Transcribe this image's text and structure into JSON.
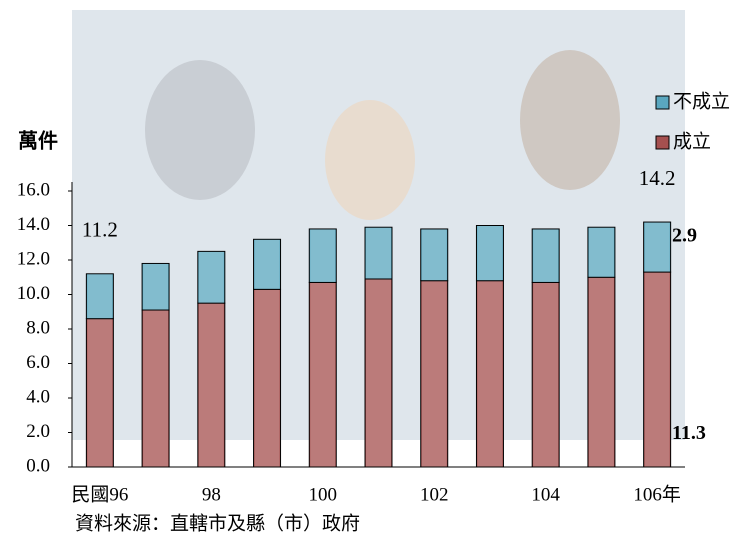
{
  "chart_data": {
    "type": "stacked-bar",
    "y_label": "萬件",
    "categories": [
      "民國96",
      null,
      "98",
      null,
      "100",
      null,
      "102",
      null,
      "104",
      null,
      "106年"
    ],
    "series": [
      {
        "name": "成立",
        "color": "#a5504f",
        "values": [
          8.6,
          9.1,
          9.5,
          10.3,
          10.7,
          10.9,
          10.8,
          10.8,
          10.7,
          11.0,
          11.3
        ],
        "value_labels": [
          null,
          null,
          null,
          null,
          null,
          null,
          null,
          null,
          null,
          null,
          "11.3"
        ],
        "label_color": "#ff0000"
      },
      {
        "name": "不成立",
        "color": "#5aa7bf",
        "values": [
          2.6,
          2.7,
          3.0,
          2.9,
          3.1,
          3.0,
          3.0,
          3.2,
          3.1,
          2.9,
          2.9
        ],
        "value_labels": [
          null,
          null,
          null,
          null,
          null,
          null,
          null,
          null,
          null,
          null,
          "2.9"
        ],
        "label_color": "#0000ff"
      }
    ],
    "annotations": [
      "11.2",
      "14.2"
    ],
    "ylim": [
      0,
      16
    ],
    "yticks": [
      {
        "value": 0,
        "label": "0.0"
      },
      {
        "value": 2,
        "label": "2.0"
      },
      {
        "value": 4,
        "label": "4.0"
      },
      {
        "value": 6,
        "label": "6.0"
      },
      {
        "value": 8,
        "label": "8.0"
      },
      {
        "value": 10,
        "label": "10.0"
      },
      {
        "value": 12,
        "label": "12.0"
      },
      {
        "value": 14,
        "label": "14.0"
      },
      {
        "value": 16,
        "label": "16.0"
      }
    ],
    "source": "資料來源：直轄市及縣（市）政府"
  }
}
